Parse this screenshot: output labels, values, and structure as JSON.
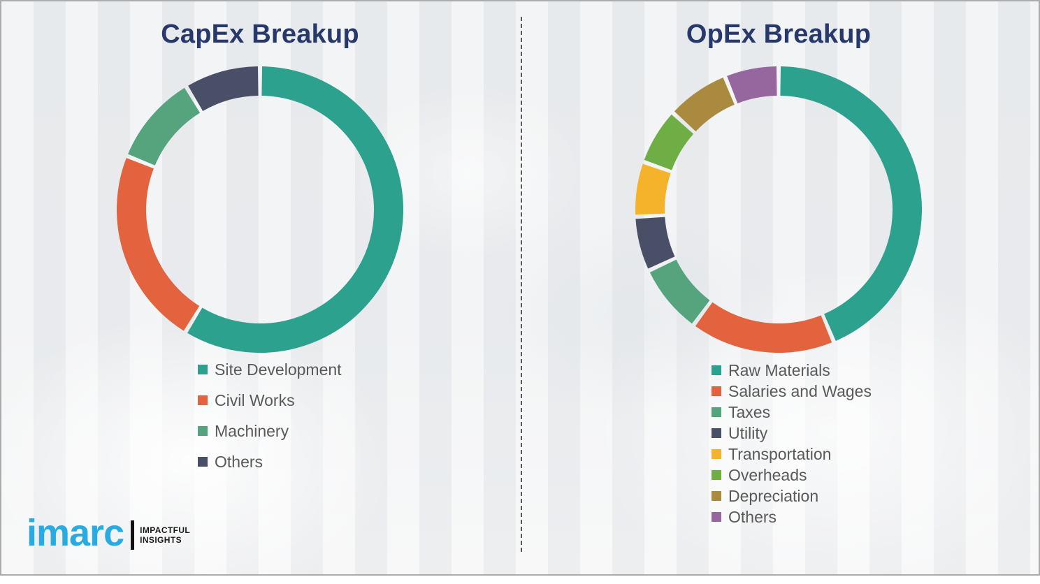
{
  "chart_data": [
    {
      "type": "pie",
      "variant": "donut",
      "title": "CapEx Breakup",
      "categories": [
        "Site Development",
        "Civil Works",
        "Machinery",
        "Others"
      ],
      "values": [
        58.7,
        22.4,
        10.3,
        8.6
      ],
      "unit": "percent",
      "colors": [
        "#2ba18e",
        "#e2633e",
        "#55a47e",
        "#4a4f68"
      ],
      "start_angle_deg": 0,
      "direction": "clockwise",
      "legend_position": "below-left",
      "data_labels": false
    },
    {
      "type": "pie",
      "variant": "donut",
      "title": "OpEx Breakup",
      "categories": [
        "Raw Materials",
        "Salaries and Wages",
        "Taxes",
        "Utility",
        "Transportation",
        "Overheads",
        "Depreciation",
        "Others"
      ],
      "values": [
        43.7,
        16.4,
        7.9,
        6.2,
        6.2,
        6.4,
        7.1,
        6.1
      ],
      "unit": "percent",
      "colors": [
        "#2ba18e",
        "#e2633e",
        "#55a47e",
        "#4a4f68",
        "#f5b32b",
        "#6fae44",
        "#a98a3e",
        "#96679e"
      ],
      "start_angle_deg": 0,
      "direction": "clockwise",
      "legend_position": "below-left",
      "data_labels": false
    }
  ],
  "page": {
    "background_color": "#edeff1",
    "frame_border_color": "#a9abad",
    "divider_style": "dashed",
    "title_color": "#27396b",
    "legend_text_color": "#595959"
  },
  "logo": {
    "brand": "imarc",
    "brand_color": "#29abe2",
    "tagline_line1": "IMPACTFUL",
    "tagline_line2": "INSIGHTS"
  }
}
